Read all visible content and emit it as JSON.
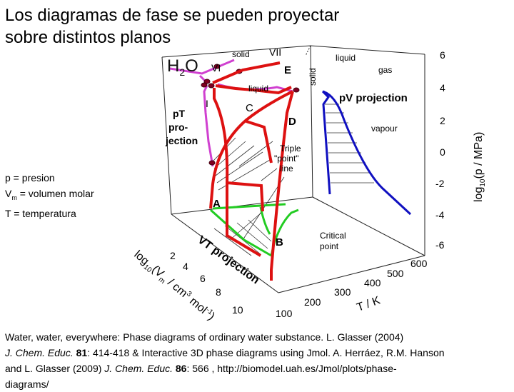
{
  "slide": {
    "title": "Los diagramas de fase se pueden proyectar sobre distintos planos",
    "legend": {
      "p": "p = presion",
      "vm_prefix": "V",
      "vm_sub": "m",
      "vm_rest": " = volumen molar",
      "t": "T = temperatura"
    },
    "citation": {
      "line1": "Water, water, everywhere: Phase diagrams of ordinary water substance. L. Glasser (2004)",
      "journal1": "J. Chem. Educ.",
      "vol1": "81",
      "pages1": ": 414-418 & Interactive 3D phase diagrams using Jmol. A. Herráez, R.M. Hanson",
      "line3_pre": "and L. Glasser (2009) ",
      "journal2": "J. Chem. Educ.",
      "vol2": "86",
      "pages2": ": 566 ,  http://biomodel.uah.es/Jmol/plots/phase-",
      "line4": "diagrams/"
    }
  },
  "figure": {
    "formula_main": "H",
    "formula_sub": "2",
    "formula_end": "O",
    "labels": {
      "solid_top": "solid",
      "vii": "VII",
      "vi": "VI",
      "e": "E",
      "liquid_top": "liquid",
      "solid_vertical": "solid",
      "gas": "gas",
      "liquid_mid": "liquid",
      "i": "I",
      "c": "C",
      "d": "D",
      "pv_projection": "pV projection",
      "vapour": "vapour",
      "pt_projection": [
        "pT",
        "pro-",
        "jection"
      ],
      "triple_point": [
        "Triple",
        "\"point\"",
        "line"
      ],
      "a": "A",
      "b": "B",
      "critical_point": [
        "Critical",
        "point"
      ],
      "vt_projection": "VT projection"
    },
    "axes": {
      "logp_title": "log",
      "logp_sub": "10",
      "logp_rest": "(p / MPa)",
      "logp_ticks": [
        "6",
        "4",
        "2",
        "0",
        "-2",
        "-4",
        "-6"
      ],
      "t_title": "T / K",
      "t_ticks": [
        "600",
        "500",
        "400",
        "300",
        "200",
        "100"
      ],
      "v_title": "log",
      "v_sub": "10",
      "v_rest": "(V",
      "v_sub2": "m",
      "v_rest2": " / cm",
      "v_sup": "3",
      "v_rest3": " mol",
      "v_sup2": "-1",
      "v_close": ")",
      "v_ticks": [
        "2",
        "4",
        "6",
        "8",
        "10"
      ]
    },
    "colors": {
      "pt": "#d040d0",
      "pv": "#1010c0",
      "vt": "#22cc22",
      "surface": "#dd1111",
      "triple_dot": "#800020"
    }
  }
}
